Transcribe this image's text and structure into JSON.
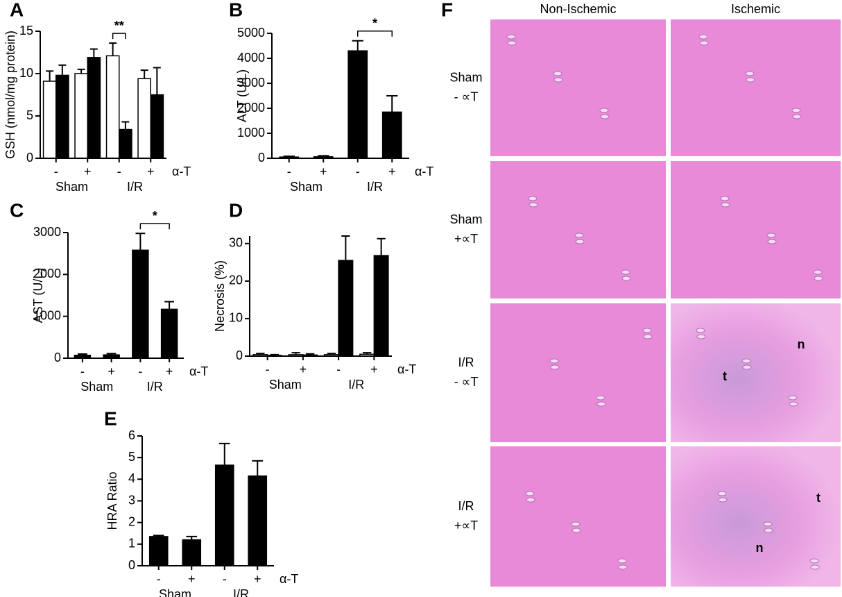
{
  "chart_data": [
    {
      "type": "bar",
      "panel": "A",
      "ylabel": "GSH (nmol/mg protein)",
      "categories": [
        "-",
        "+",
        "-",
        "+"
      ],
      "groups": [
        "Sham",
        "I/R"
      ],
      "factor_label": "α-T",
      "ylim": [
        0,
        15
      ],
      "yticks": [
        0,
        5,
        10,
        15
      ],
      "series": [
        {
          "color": "#ffffff",
          "values": [
            9.1,
            10.0,
            12.1,
            9.4
          ],
          "errors": [
            1.2,
            0.5,
            1.5,
            1.0
          ]
        },
        {
          "color": "#000000",
          "values": [
            9.8,
            11.9,
            3.4,
            7.5
          ],
          "errors": [
            1.2,
            1.0,
            0.9,
            3.2
          ]
        }
      ],
      "annotation": "**"
    },
    {
      "type": "bar",
      "panel": "B",
      "ylabel": "ALT (U/L)",
      "categories": [
        "-",
        "+",
        "-",
        "+"
      ],
      "groups": [
        "Sham",
        "I/R"
      ],
      "factor_label": "α-T",
      "ylim": [
        0,
        5000
      ],
      "yticks": [
        0,
        1000,
        2000,
        3000,
        4000,
        5000
      ],
      "series": [
        {
          "color": "#000000",
          "values": [
            50,
            60,
            4300,
            1850
          ],
          "errors": [
            30,
            40,
            400,
            650
          ]
        }
      ],
      "annotation": "*"
    },
    {
      "type": "bar",
      "panel": "C",
      "ylabel": "AST (U/L)",
      "categories": [
        "-",
        "+",
        "-",
        "+"
      ],
      "groups": [
        "Sham",
        "I/R"
      ],
      "factor_label": "α-T",
      "ylim": [
        0,
        3000
      ],
      "yticks": [
        0,
        1000,
        2000,
        3000
      ],
      "series": [
        {
          "color": "#000000",
          "values": [
            70,
            80,
            2580,
            1170
          ],
          "errors": [
            30,
            30,
            400,
            180
          ]
        }
      ],
      "annotation": "*"
    },
    {
      "type": "bar",
      "panel": "D",
      "ylabel": "Necrosis (%)",
      "categories": [
        "-",
        "+",
        "-",
        "+"
      ],
      "groups": [
        "Sham",
        "I/R"
      ],
      "factor_label": "α-T",
      "ylim": [
        0,
        32
      ],
      "yticks": [
        0,
        10,
        20,
        30
      ],
      "series": [
        {
          "color": "#ffffff",
          "values": [
            0.4,
            0.4,
            0.4,
            0.5
          ],
          "errors": [
            0.3,
            0.5,
            0.3,
            0.4
          ]
        },
        {
          "color": "#000000",
          "values": [
            0.2,
            0.3,
            25.5,
            26.8
          ],
          "errors": [
            0.2,
            0.3,
            6.5,
            4.5
          ]
        }
      ]
    },
    {
      "type": "bar",
      "panel": "E",
      "ylabel": "HRA Ratio",
      "categories": [
        "-",
        "+",
        "-",
        "+"
      ],
      "groups": [
        "Sham",
        "I/R"
      ],
      "factor_label": "α-T",
      "ylim": [
        0,
        6
      ],
      "yticks": [
        0,
        1,
        2,
        3,
        4,
        5,
        6
      ],
      "series": [
        {
          "color": "#000000",
          "values": [
            1.35,
            1.2,
            4.65,
            4.15
          ],
          "errors": [
            0.05,
            0.15,
            1.0,
            0.7
          ]
        }
      ]
    }
  ],
  "panel_f": {
    "panel": "F",
    "columns": [
      "Non-Ischemic",
      "Ischemic"
    ],
    "rows": [
      [
        "Sham",
        "- ∝T"
      ],
      [
        "Sham",
        "+∝T"
      ],
      [
        "I/R",
        "- ∝T"
      ],
      [
        "I/R",
        "+∝T"
      ]
    ],
    "labels": [
      {
        "row": 2,
        "text": "n"
      },
      {
        "row": 2,
        "text": "t"
      },
      {
        "row": 3,
        "text": "t"
      },
      {
        "row": 3,
        "text": "n"
      }
    ]
  }
}
